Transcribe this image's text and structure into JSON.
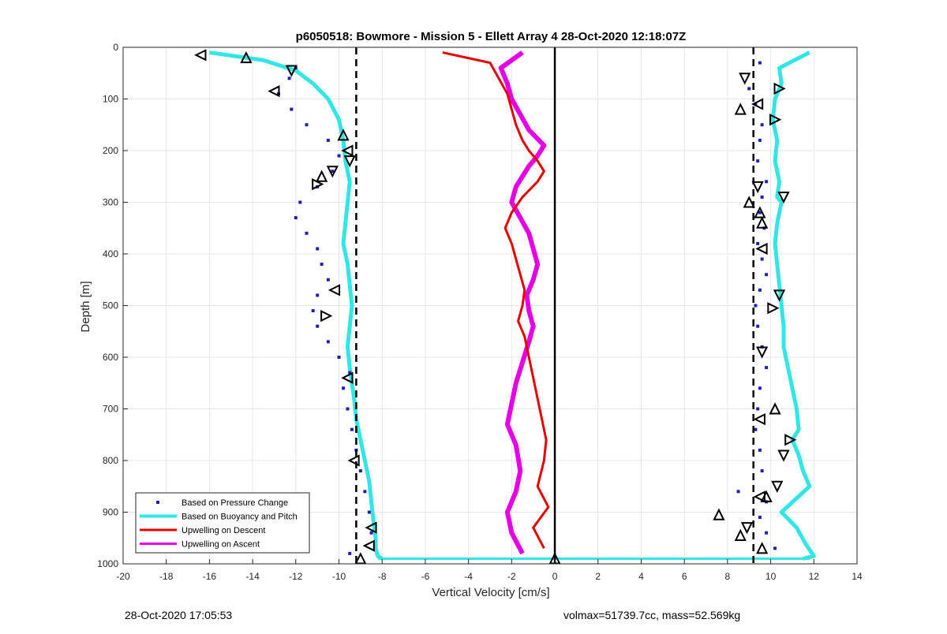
{
  "chart_data": {
    "type": "scatter",
    "title": "p6050518: Bowmore - Mission 5 - Ellett Array 4 28-Oct-2020 12:18:07Z",
    "xlabel": "Vertical Velocity [cm/s]",
    "ylabel": "Depth [m]",
    "xlim": [
      -20,
      14
    ],
    "ylim": [
      0,
      1000
    ],
    "y_reversed": true,
    "grid": true,
    "xticks": [
      "-20",
      "-18",
      "-16",
      "-14",
      "-12",
      "-10",
      "-8",
      "-6",
      "-4",
      "-2",
      "0",
      "2",
      "4",
      "6",
      "8",
      "10",
      "12",
      "14"
    ],
    "yticks": [
      "0",
      "100",
      "200",
      "300",
      "400",
      "500",
      "600",
      "700",
      "800",
      "900",
      "1000"
    ],
    "legend_position": "bottom-left",
    "legend": [
      "Based on Pressure Change",
      "Based on Buoyancy and Pitch",
      "Upwelling on Descent",
      "Upwelling on Ascent"
    ],
    "colors": {
      "pressure": "#1f1fb4",
      "buoyancy": "#33e6e6",
      "descent": "#e60000",
      "ascent": "#e600e6",
      "reference": "#000000"
    },
    "reference_lines": [
      {
        "x": -9.2,
        "style": "dashed"
      },
      {
        "x": 9.2,
        "style": "dashed"
      },
      {
        "x": 0,
        "style": "solid"
      }
    ],
    "series": [
      {
        "key": "buoyancy_descent",
        "x": [
          -16.0,
          -13.5,
          -12.0,
          -11.2,
          -10.5,
          -10.0,
          -9.8,
          -9.7,
          -9.5,
          -9.6,
          -9.7,
          -9.8,
          -9.6,
          -9.5,
          -9.4,
          -9.5,
          -9.6,
          -9.5,
          -9.4,
          -9.3,
          -9.2,
          -9.0,
          -8.8,
          -8.6,
          -8.5,
          -8.4,
          -8.3,
          -8.3,
          -8.2,
          -8.0
        ],
        "y": [
          10,
          25,
          45,
          70,
          100,
          140,
          180,
          220,
          260,
          300,
          340,
          380,
          420,
          460,
          500,
          540,
          580,
          620,
          650,
          680,
          720,
          760,
          800,
          840,
          880,
          920,
          950,
          970,
          985,
          990
        ]
      },
      {
        "key": "buoyancy_ascent",
        "x": [
          11.8,
          10.4,
          10.5,
          10.2,
          10.1,
          10.3,
          10.2,
          10.4,
          10.3,
          10.5,
          10.3,
          10.2,
          10.3,
          10.4,
          10.5,
          10.6,
          10.6,
          10.8,
          11.0,
          11.2,
          11.3,
          11.0,
          11.3,
          11.5,
          11.8,
          10.5,
          11.2,
          11.6,
          12.0,
          11.5
        ],
        "y": [
          10,
          40,
          70,
          100,
          140,
          180,
          220,
          260,
          290,
          300,
          340,
          380,
          420,
          460,
          500,
          540,
          580,
          620,
          660,
          700,
          740,
          760,
          790,
          820,
          850,
          900,
          930,
          960,
          985,
          990
        ]
      },
      {
        "key": "pressure_descent",
        "x": [
          -12.0,
          -12.3,
          -12.8,
          -12.2,
          -11.5,
          -10.5,
          -10.0,
          -10.3,
          -11.0,
          -11.8,
          -12.0,
          -11.5,
          -11.0,
          -10.8,
          -10.5,
          -11.0,
          -11.2,
          -11.0,
          -10.5,
          -10.0,
          -9.5,
          -9.8,
          -9.6,
          -9.4,
          -9.2,
          -9.0,
          -8.8,
          -8.6,
          -8.5,
          -9.5
        ],
        "y": [
          40,
          60,
          90,
          120,
          150,
          180,
          210,
          240,
          270,
          300,
          330,
          360,
          390,
          420,
          450,
          480,
          510,
          540,
          570,
          600,
          630,
          660,
          700,
          740,
          780,
          820,
          860,
          900,
          940,
          980
        ]
      },
      {
        "key": "pressure_ascent",
        "x": [
          9.5,
          9.0,
          9.3,
          9.6,
          9.5,
          9.4,
          9.8,
          9.6,
          9.5,
          9.7,
          9.4,
          9.6,
          9.8,
          9.5,
          9.3,
          9.4,
          9.6,
          9.8,
          9.5,
          9.4,
          9.3,
          9.5,
          9.6,
          8.5,
          9.8,
          9.5,
          9.8,
          10.2
        ],
        "y": [
          30,
          80,
          110,
          150,
          180,
          220,
          260,
          290,
          320,
          350,
          380,
          410,
          440,
          470,
          500,
          540,
          580,
          620,
          660,
          700,
          740,
          780,
          820,
          860,
          880,
          910,
          940,
          970
        ]
      },
      {
        "key": "descent",
        "x": [
          -5.2,
          -3.0,
          -2.6,
          -2.2,
          -2.0,
          -1.8,
          -1.5,
          -1.2,
          -0.8,
          -0.5,
          -0.8,
          -1.5,
          -2.0,
          -2.3,
          -2.0,
          -1.8,
          -1.6,
          -1.4,
          -1.5,
          -1.7,
          -1.4,
          -1.2,
          -1.0,
          -0.8,
          -0.6,
          -0.4,
          -0.5,
          -0.8,
          -0.3,
          -1.0,
          -0.5
        ],
        "y": [
          10,
          30,
          60,
          90,
          120,
          150,
          180,
          200,
          220,
          240,
          260,
          290,
          320,
          350,
          380,
          410,
          440,
          470,
          500,
          530,
          560,
          600,
          640,
          680,
          720,
          760,
          800,
          850,
          890,
          930,
          970
        ]
      },
      {
        "key": "ascent",
        "x": [
          -1.5,
          -2.5,
          -2.2,
          -2.0,
          -1.6,
          -1.2,
          -0.5,
          -0.8,
          -1.2,
          -1.5,
          -1.8,
          -2.0,
          -1.6,
          -1.2,
          -1.0,
          -0.8,
          -1.0,
          -1.3,
          -1.2,
          -1.0,
          -1.2,
          -1.5,
          -1.8,
          -2.0,
          -2.2,
          -1.8,
          -1.6,
          -1.8,
          -2.2,
          -2.0,
          -1.5
        ],
        "y": [
          10,
          40,
          70,
          100,
          130,
          160,
          190,
          210,
          230,
          250,
          270,
          300,
          330,
          360,
          390,
          420,
          450,
          480,
          510,
          540,
          570,
          610,
          650,
          690,
          730,
          770,
          820,
          860,
          900,
          940,
          980
        ]
      },
      {
        "key": "surface_spike",
        "x": [
          -8.2,
          -4.0,
          0.0,
          4.0,
          8.0,
          11.8
        ],
        "y": [
          990,
          990,
          990,
          990,
          990,
          990
        ]
      }
    ],
    "markers": {
      "up_triangles": [
        [
          -14.3,
          20
        ],
        [
          -9.8,
          170
        ],
        [
          -10.8,
          250
        ],
        [
          -9.0,
          990
        ],
        [
          0.0,
          990
        ],
        [
          8.6,
          120
        ],
        [
          9.0,
          300
        ],
        [
          9.6,
          340
        ],
        [
          9.5,
          320
        ],
        [
          10.2,
          700
        ],
        [
          9.8,
          870
        ],
        [
          7.6,
          905
        ],
        [
          8.6,
          945
        ],
        [
          9.6,
          970
        ]
      ],
      "down_triangles": [
        [
          -12.2,
          45
        ],
        [
          -9.5,
          220
        ],
        [
          -10.3,
          240
        ],
        [
          8.8,
          60
        ],
        [
          9.4,
          270
        ],
        [
          10.4,
          480
        ],
        [
          9.6,
          590
        ],
        [
          10.6,
          790
        ],
        [
          10.3,
          850
        ],
        [
          10.6,
          290
        ],
        [
          8.9,
          930
        ]
      ],
      "left_triangles": [
        [
          -16.4,
          15
        ],
        [
          -13.0,
          85
        ],
        [
          -9.6,
          200
        ],
        [
          -10.2,
          470
        ],
        [
          -9.6,
          640
        ],
        [
          -9.3,
          800
        ],
        [
          -8.5,
          930
        ],
        [
          -8.6,
          965
        ],
        [
          9.4,
          110
        ],
        [
          9.6,
          390
        ],
        [
          9.5,
          720
        ],
        [
          9.5,
          870
        ]
      ],
      "right_triangles": [
        [
          -11.0,
          265
        ],
        [
          -10.6,
          520
        ],
        [
          10.1,
          505
        ],
        [
          10.9,
          760
        ],
        [
          10.2,
          140
        ],
        [
          10.4,
          80
        ]
      ]
    }
  },
  "footer": {
    "left": "28-Oct-2020 17:05:53",
    "right": "volmax=51739.7cc, mass=52.569kg"
  }
}
